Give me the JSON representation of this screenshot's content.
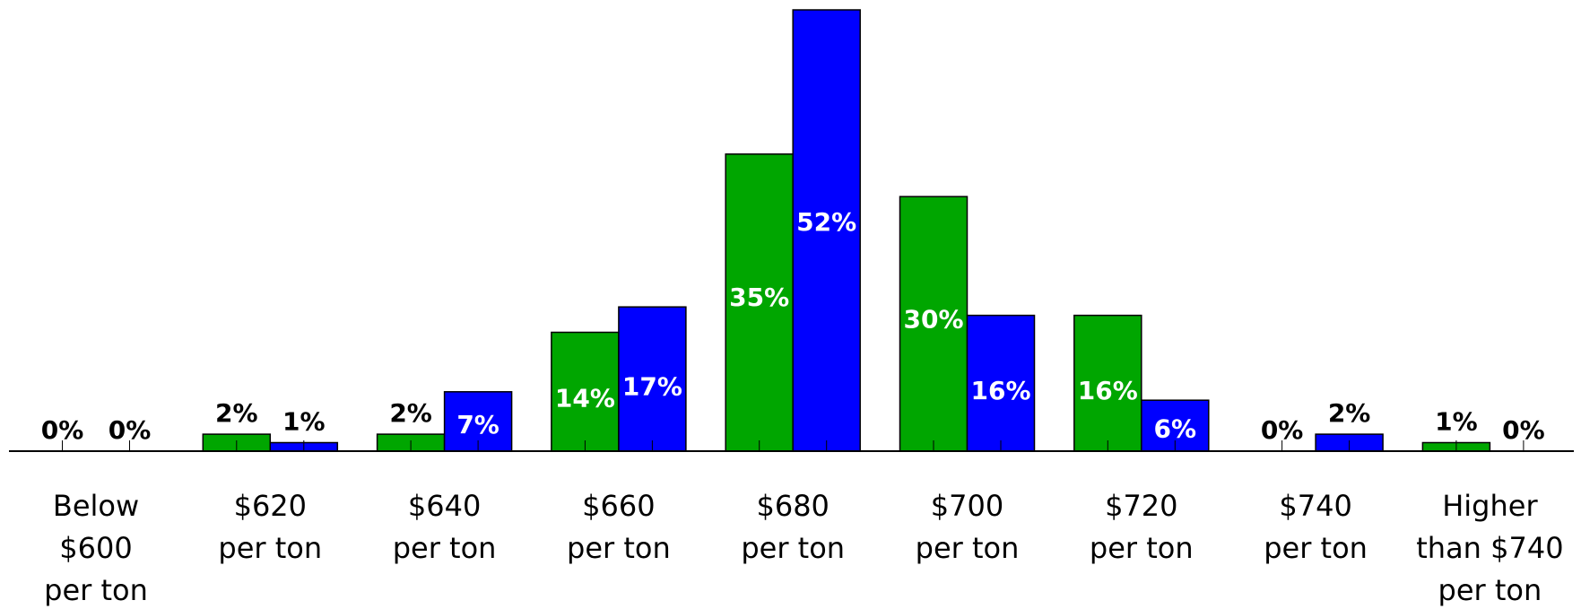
{
  "colors": {
    "series_green": "#00a600",
    "series_blue": "#0000ff",
    "axis": "#000000",
    "label_inside": "#ffffff",
    "label_outside": "#000000"
  },
  "chart_data": {
    "type": "bar",
    "title": "",
    "xlabel": "",
    "ylabel": "",
    "ylim": [
      0,
      52
    ],
    "grid": false,
    "legend": "none",
    "categories": [
      [
        "Below",
        "$600",
        "per ton"
      ],
      [
        "$620",
        "per ton"
      ],
      [
        "$640",
        "per ton"
      ],
      [
        "$660",
        "per ton"
      ],
      [
        "$680",
        "per ton"
      ],
      [
        "$700",
        "per ton"
      ],
      [
        "$720",
        "per ton"
      ],
      [
        "$740",
        "per ton"
      ],
      [
        "Higher",
        "than $740",
        "per ton"
      ]
    ],
    "series": [
      {
        "color": "#00a600",
        "values": [
          0,
          2,
          2,
          14,
          35,
          30,
          16,
          0,
          1
        ],
        "labels": [
          "0%",
          "2%",
          "2%",
          "14%",
          "35%",
          "30%",
          "16%",
          "0%",
          "1%"
        ]
      },
      {
        "color": "#0000ff",
        "values": [
          0,
          1,
          7,
          17,
          52,
          16,
          6,
          2,
          0
        ],
        "labels": [
          "0%",
          "1%",
          "7%",
          "17%",
          "52%",
          "16%",
          "6%",
          "2%",
          "0%"
        ]
      }
    ]
  }
}
